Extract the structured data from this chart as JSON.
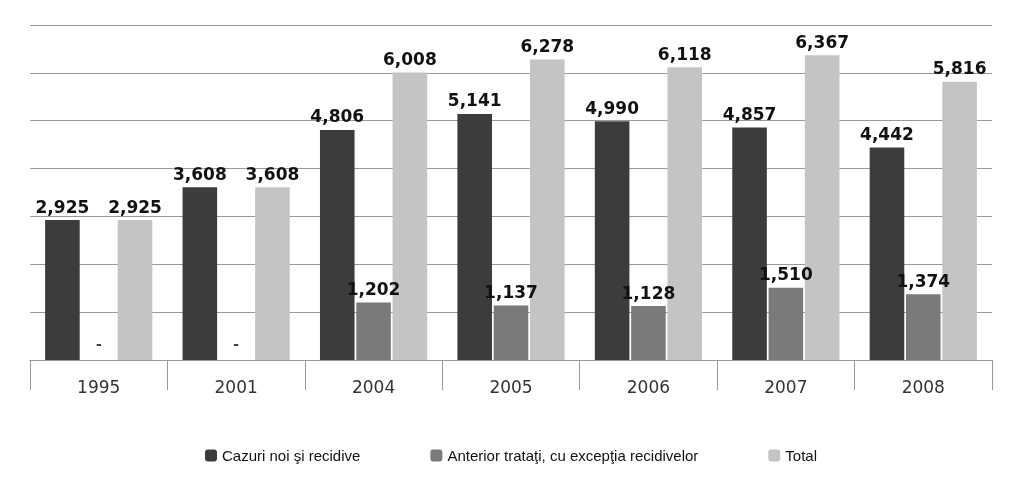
{
  "chart_data": {
    "type": "bar",
    "categories": [
      "1995",
      "2001",
      "2004",
      "2005",
      "2006",
      "2007",
      "2008"
    ],
    "series": [
      {
        "name": "Cazuri noi şi recidive",
        "color": "#3c3c3c",
        "values": [
          2925,
          3608,
          4806,
          5141,
          4990,
          4857,
          4442
        ],
        "value_labels": [
          "2,925",
          "3,608",
          "4,806",
          "5,141",
          "4,990",
          "4,857",
          "4,442"
        ]
      },
      {
        "name": "Anterior trataţi, cu excepţia recidivelor",
        "color": "#7a7a7a",
        "values": [
          null,
          null,
          1202,
          1137,
          1128,
          1510,
          1374
        ],
        "value_labels": [
          "-",
          "-",
          "1,202",
          "1,137",
          "1,128",
          "1,510",
          "1,374"
        ]
      },
      {
        "name": "Total",
        "color": "#c4c4c4",
        "values": [
          2925,
          3608,
          6008,
          6278,
          6118,
          6367,
          5816
        ],
        "value_labels": [
          "2,925",
          "3,608",
          "6,008",
          "6,278",
          "6,118",
          "6,367",
          "5,816"
        ]
      }
    ],
    "ylim": [
      0,
      7000
    ],
    "yticks": [
      {
        "value": 0,
        "label": null
      },
      {
        "value": 1000,
        "label": null
      },
      {
        "value": 2000,
        "label": null
      },
      {
        "value": 3000,
        "label": null
      },
      {
        "value": 4000,
        "label": null
      },
      {
        "value": 5000,
        "label": null
      },
      {
        "value": 6000,
        "label": null
      },
      {
        "value": 7000,
        "label": null
      }
    ],
    "grid": "y",
    "legend": "bottom",
    "tick_labels": "x"
  }
}
